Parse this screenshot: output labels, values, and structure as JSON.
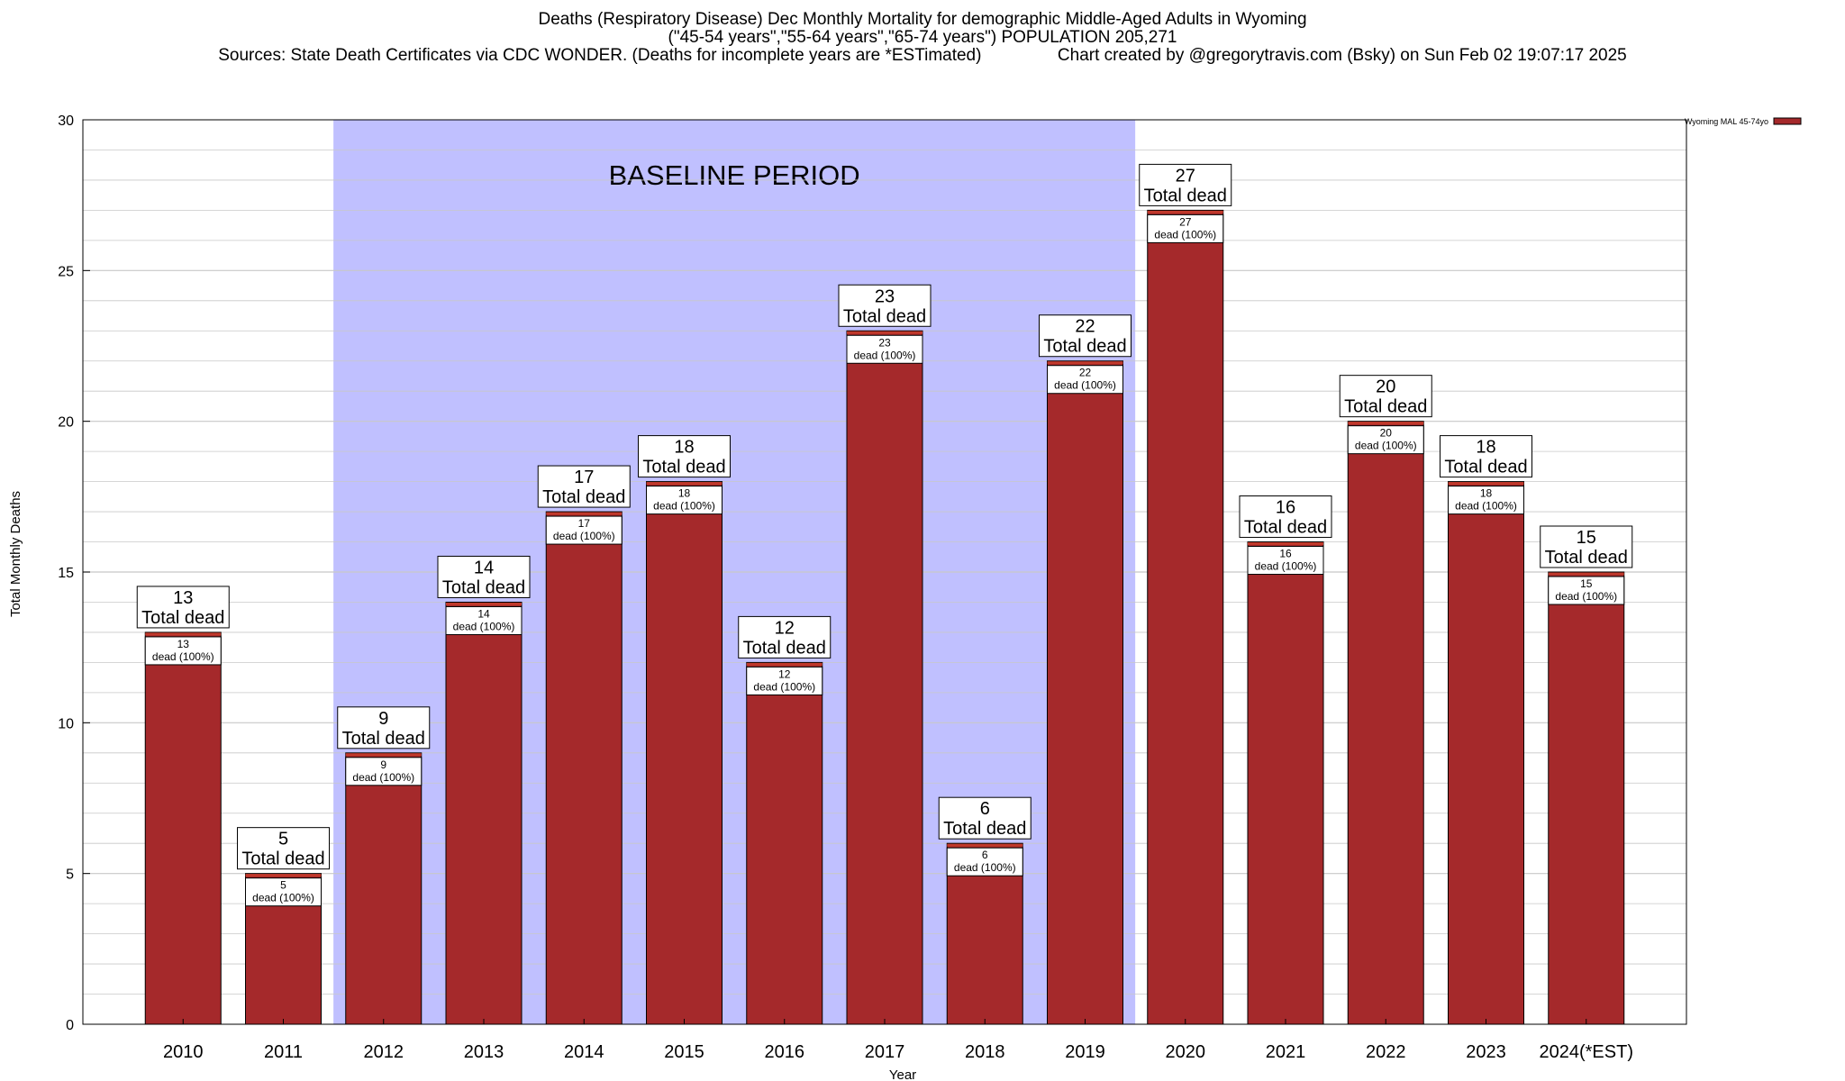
{
  "title_lines": [
    "Deaths (Respiratory Disease) Dec Monthly Mortality for demographic Middle-Aged Adults in Wyoming",
    "(\"45-54 years\",\"55-64 years\",\"65-74 years\") POPULATION 205,271",
    "Sources: State Death Certificates via CDC WONDER. (Deaths for incomplete years are *ESTimated)                Chart created by @gregorytravis.com (Bsky) on Sun Feb 02 19:07:17 2025"
  ],
  "colors": {
    "bar_fill": "#a5292b",
    "bar_top": "#c0392b",
    "baseline_band": "#c0c0ff",
    "grid": "#c8c8c8"
  },
  "chart_data": {
    "type": "bar",
    "title": "Deaths (Respiratory Disease) Dec Monthly Mortality for demographic Middle-Aged Adults in Wyoming",
    "xlabel": "Year",
    "ylabel": "Total Monthly Deaths",
    "ylim": [
      0,
      30
    ],
    "yticks": [
      0,
      5,
      10,
      15,
      20,
      25,
      30
    ],
    "grid": true,
    "legend": {
      "position": "top-right",
      "entries": [
        "Wyoming MAL 45-74yo"
      ]
    },
    "categories": [
      "2010",
      "2011",
      "2012",
      "2013",
      "2014",
      "2015",
      "2016",
      "2017",
      "2018",
      "2019",
      "2020",
      "2021",
      "2022",
      "2023",
      "2024(*EST)"
    ],
    "series": [
      {
        "name": "Wyoming MAL 45-74yo",
        "values": [
          13,
          5,
          9,
          14,
          17,
          18,
          12,
          23,
          6,
          22,
          27,
          16,
          20,
          18,
          15
        ]
      }
    ],
    "total_label": "Total dead",
    "inner_label": "dead (100%)",
    "baseline_period": {
      "label": "BASELINE PERIOD",
      "from": "2012",
      "to": "2019"
    }
  }
}
